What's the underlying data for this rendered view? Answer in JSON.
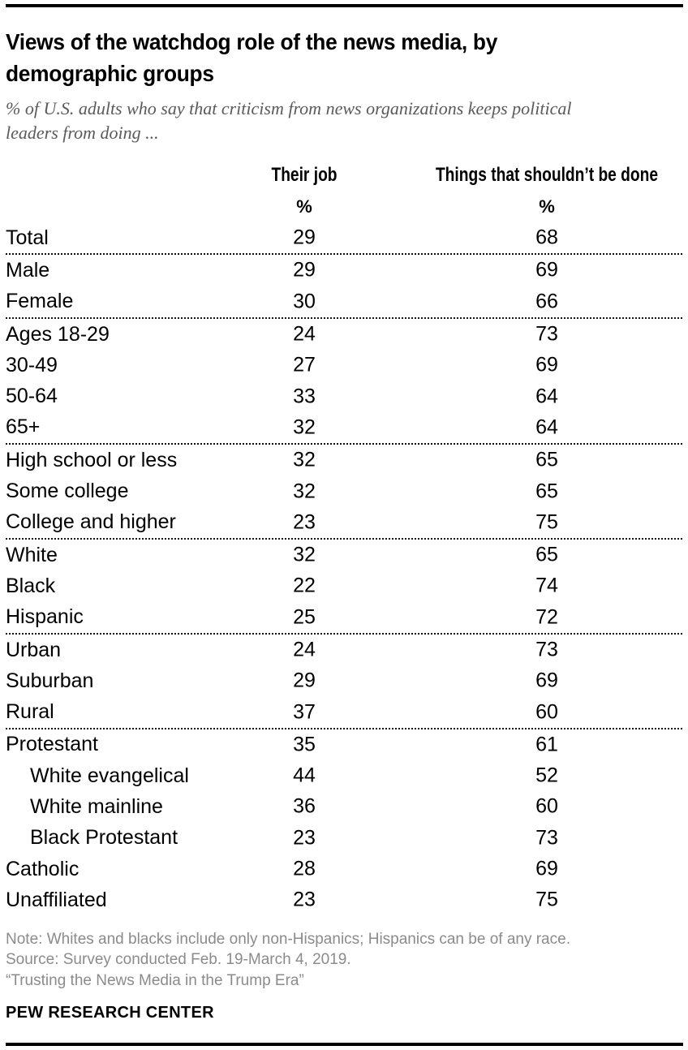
{
  "chart_data": {
    "type": "table",
    "title": "Views of the watchdog role of the news media, by demographic groups",
    "subtitle": "% of U.S. adults who say that criticism from news organizations keeps political leaders from doing ...",
    "columns": [
      "Their job",
      "Things that shouldn’t be done"
    ],
    "unit_label": "%",
    "groups": [
      [
        {
          "label": "Total",
          "their_job": 29,
          "things_not_done": 68
        }
      ],
      [
        {
          "label": "Male",
          "their_job": 29,
          "things_not_done": 69
        },
        {
          "label": "Female",
          "their_job": 30,
          "things_not_done": 66
        }
      ],
      [
        {
          "label": "Ages 18-29",
          "their_job": 24,
          "things_not_done": 73
        },
        {
          "label": "30-49",
          "their_job": 27,
          "things_not_done": 69
        },
        {
          "label": "50-64",
          "their_job": 33,
          "things_not_done": 64
        },
        {
          "label": "65+",
          "their_job": 32,
          "things_not_done": 64
        }
      ],
      [
        {
          "label": "High school or less",
          "their_job": 32,
          "things_not_done": 65
        },
        {
          "label": "Some college",
          "their_job": 32,
          "things_not_done": 65
        },
        {
          "label": "College and higher",
          "their_job": 23,
          "things_not_done": 75
        }
      ],
      [
        {
          "label": "White",
          "their_job": 32,
          "things_not_done": 65
        },
        {
          "label": "Black",
          "their_job": 22,
          "things_not_done": 74
        },
        {
          "label": "Hispanic",
          "their_job": 25,
          "things_not_done": 72
        }
      ],
      [
        {
          "label": "Urban",
          "their_job": 24,
          "things_not_done": 73
        },
        {
          "label": "Suburban",
          "their_job": 29,
          "things_not_done": 69
        },
        {
          "label": "Rural",
          "their_job": 37,
          "things_not_done": 60
        }
      ],
      [
        {
          "label": "Protestant",
          "their_job": 35,
          "things_not_done": 61
        },
        {
          "label": "White evangelical",
          "their_job": 44,
          "things_not_done": 52,
          "indent": true
        },
        {
          "label": "White mainline",
          "their_job": 36,
          "things_not_done": 60,
          "indent": true
        },
        {
          "label": "Black Protestant",
          "their_job": 23,
          "things_not_done": 73,
          "indent": true
        },
        {
          "label": "Catholic",
          "their_job": 28,
          "things_not_done": 69
        },
        {
          "label": "Unaffiliated",
          "their_job": 23,
          "things_not_done": 75
        }
      ]
    ],
    "layout": {
      "grid": "dotted-row-group-separators",
      "legend": "none"
    }
  },
  "footer": {
    "note": "Note: Whites and blacks include only non-Hispanics; Hispanics can be of any race.",
    "source": "Source: Survey conducted Feb. 19-March 4, 2019.",
    "report": "“Trusting the News Media in the Trump Era”",
    "brand": "PEW RESEARCH CENTER"
  }
}
